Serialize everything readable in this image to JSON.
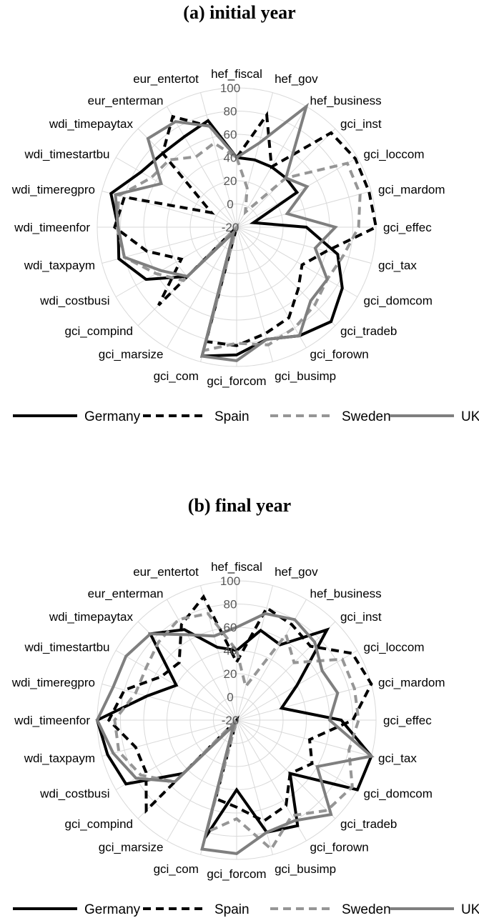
{
  "chart_data": [
    {
      "type": "radar",
      "title": "(a) initial year",
      "categories": [
        "hef_fiscal",
        "hef_gov",
        "hef_business",
        "gci_inst",
        "gci_loccom",
        "gci_mardom",
        "gci_effec",
        "gci_tax",
        "gci_domcom",
        "gci_tradeb",
        "gci_forown",
        "gci_busimp",
        "gci_forcom",
        "gci_com",
        "gci_marsize",
        "gci_compind",
        "wdi_costbusi",
        "wdi_taxpaym",
        "wdi_timeenfor",
        "wdi_timeregpro",
        "wdi_timestartbu",
        "wdi_timepaytax",
        "eur_enterman",
        "eur_entertot"
      ],
      "ticks": [
        "-20",
        "0",
        "20",
        "40",
        "60",
        "80",
        "100"
      ],
      "rlim": [
        -20,
        100
      ],
      "grid": true,
      "legend_position": "bottom",
      "series": [
        {
          "name": "Germany",
          "values": [
            40,
            40,
            40,
            40,
            40,
            -5,
            40,
            70,
            85,
            95,
            88,
            80,
            90,
            95,
            -15,
            40,
            70,
            85,
            82,
            92,
            75,
            70,
            70,
            75
          ]
        },
        {
          "name": "Spain",
          "values": [
            40,
            80,
            40,
            95,
            98,
            98,
            100,
            60,
            45,
            55,
            70,
            75,
            82,
            82,
            -20,
            75,
            35,
            60,
            85,
            80,
            5,
            70,
            90,
            70
          ]
        },
        {
          "name": "Sweden",
          "values": [
            40,
            15,
            -5,
            40,
            90,
            90,
            85,
            75,
            70,
            75,
            80,
            85,
            80,
            90,
            -20,
            45,
            60,
            80,
            83,
            85,
            65,
            62,
            50,
            55
          ]
        },
        {
          "name": "UK",
          "values": [
            40,
            55,
            100,
            40,
            50,
            25,
            65,
            50,
            70,
            70,
            88,
            80,
            95,
            95,
            -15,
            40,
            55,
            80,
            82,
            88,
            55,
            88,
            85,
            70
          ]
        }
      ],
      "colors": [
        "#000000",
        "#000000",
        "#969696",
        "#7f7f7f"
      ],
      "dashes": [
        "solid",
        "dashed",
        "dashed",
        "solid"
      ]
    },
    {
      "type": "radar",
      "title": "(b) final year",
      "categories": [
        "hef_fiscal",
        "hef_gov",
        "hef_business",
        "gci_inst",
        "gci_loccom",
        "gci_mardom",
        "gci_effec",
        "gci_tax",
        "gci_domcom",
        "gci_tradeb",
        "gci_forown",
        "gci_busimp",
        "gci_forcom",
        "gci_com",
        "gci_marsize",
        "gci_compind",
        "wdi_costbusi",
        "wdi_taxpaym",
        "wdi_timeenfor",
        "wdi_timeregpro",
        "wdi_timestartbu",
        "wdi_timepaytax",
        "eur_enterman",
        "eur_entertot"
      ],
      "ticks": [
        "-20",
        "0",
        "20",
        "40",
        "60",
        "80",
        "100"
      ],
      "rlim": [
        -20,
        100
      ],
      "grid": true,
      "legend_position": "bottom",
      "series": [
        {
          "name": "Germany",
          "values": [
            40,
            60,
            55,
            90,
            40,
            20,
            70,
            100,
            100,
            45,
            85,
            80,
            40,
            85,
            -15,
            45,
            90,
            95,
            100,
            60,
            40,
            85,
            70,
            45
          ]
        },
        {
          "name": "Spain",
          "values": [
            30,
            80,
            75,
            70,
            95,
            100,
            80,
            45,
            55,
            45,
            65,
            70,
            55,
            50,
            -20,
            90,
            70,
            70,
            90,
            80,
            55,
            50,
            75,
            90
          ]
        },
        {
          "name": "Sweden",
          "values": [
            40,
            10,
            65,
            50,
            85,
            85,
            85,
            80,
            95,
            90,
            75,
            95,
            65,
            80,
            -20,
            55,
            75,
            85,
            85,
            70,
            70,
            75,
            80,
            75
          ]
        },
        {
          "name": "UK",
          "values": [
            60,
            75,
            80,
            75,
            65,
            70,
            60,
            100,
            60,
            95,
            80,
            80,
            95,
            95,
            -15,
            55,
            80,
            90,
            100,
            90,
            90,
            85,
            65,
            55
          ]
        }
      ],
      "colors": [
        "#000000",
        "#000000",
        "#969696",
        "#7f7f7f"
      ],
      "dashes": [
        "solid",
        "dashed",
        "dashed",
        "solid"
      ]
    }
  ]
}
